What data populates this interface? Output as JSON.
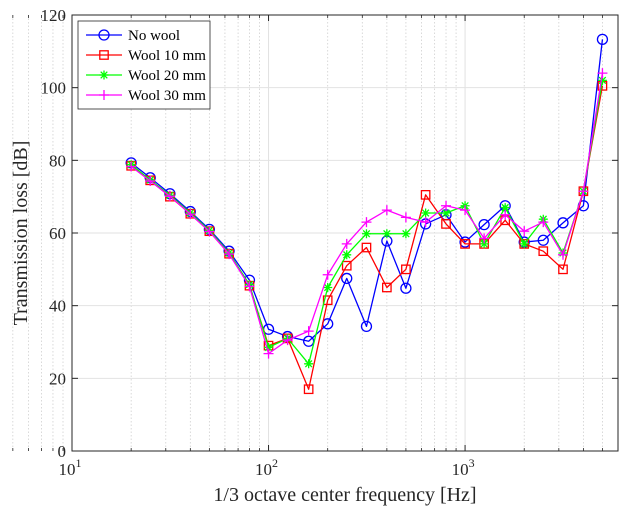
{
  "chart_data": {
    "type": "line",
    "xscale": "log",
    "xlim": [
      10,
      6000
    ],
    "ylim": [
      0,
      120
    ],
    "xlabel": "1/3 octave center frequency [Hz]",
    "ylabel": "Transmission loss [dB]",
    "grid": true,
    "legend_position": "top-left",
    "x_ticks": [
      {
        "value": 10,
        "base": "10",
        "exp": "1"
      },
      {
        "value": 100,
        "base": "10",
        "exp": "2"
      },
      {
        "value": 1000,
        "base": "10",
        "exp": "3"
      }
    ],
    "y_ticks": [
      {
        "value": 0,
        "label": "0"
      },
      {
        "value": 20,
        "label": "20"
      },
      {
        "value": 40,
        "label": "40"
      },
      {
        "value": 60,
        "label": "60"
      },
      {
        "value": 80,
        "label": "80"
      },
      {
        "value": 100,
        "label": "100"
      },
      {
        "value": 120,
        "label": "120"
      }
    ],
    "x": [
      20,
      25,
      31.5,
      40,
      50,
      63,
      80,
      100,
      125,
      160,
      200,
      250,
      315,
      400,
      500,
      630,
      800,
      1000,
      1250,
      1600,
      2000,
      2500,
      3150,
      4000,
      5000
    ],
    "series": [
      {
        "name": "No wool",
        "color": "#0000ff",
        "marker": "circle",
        "values": [
          79.3,
          75.2,
          70.8,
          65.9,
          61.0,
          55.0,
          47.0,
          33.5,
          31.5,
          30.2,
          35.0,
          47.5,
          34.3,
          57.8,
          44.8,
          62.5,
          65.0,
          57.5,
          62.3,
          67.5,
          57.5,
          58.0,
          62.8,
          67.5,
          113.3
        ]
      },
      {
        "name": "Wool 10 mm",
        "color": "#ff0000",
        "marker": "square",
        "values": [
          78.5,
          74.5,
          70.0,
          65.3,
          60.5,
          54.3,
          45.5,
          29.0,
          31.0,
          17.0,
          41.5,
          51.0,
          56.0,
          45.0,
          50.0,
          70.5,
          62.5,
          57.0,
          57.0,
          63.5,
          57.0,
          55.0,
          50.0,
          71.5,
          100.5
        ]
      },
      {
        "name": "Wool 20 mm",
        "color": "#00ff00",
        "marker": "asterisk",
        "values": [
          78.8,
          74.6,
          70.4,
          65.5,
          60.7,
          54.5,
          45.8,
          28.5,
          31.0,
          24.0,
          45.0,
          54.0,
          59.8,
          59.8,
          59.8,
          65.5,
          65.5,
          67.5,
          57.0,
          67.0,
          57.0,
          63.8,
          54.5,
          71.5,
          102.0
        ]
      },
      {
        "name": "Wool 30 mm",
        "color": "#ff00ff",
        "marker": "plus",
        "values": [
          78.3,
          74.3,
          70.1,
          65.2,
          60.4,
          54.2,
          45.3,
          26.8,
          30.5,
          33.0,
          48.5,
          57.0,
          63.0,
          66.3,
          64.3,
          63.0,
          67.5,
          66.3,
          58.5,
          65.0,
          60.5,
          63.0,
          54.0,
          71.5,
          104.0
        ]
      }
    ]
  }
}
